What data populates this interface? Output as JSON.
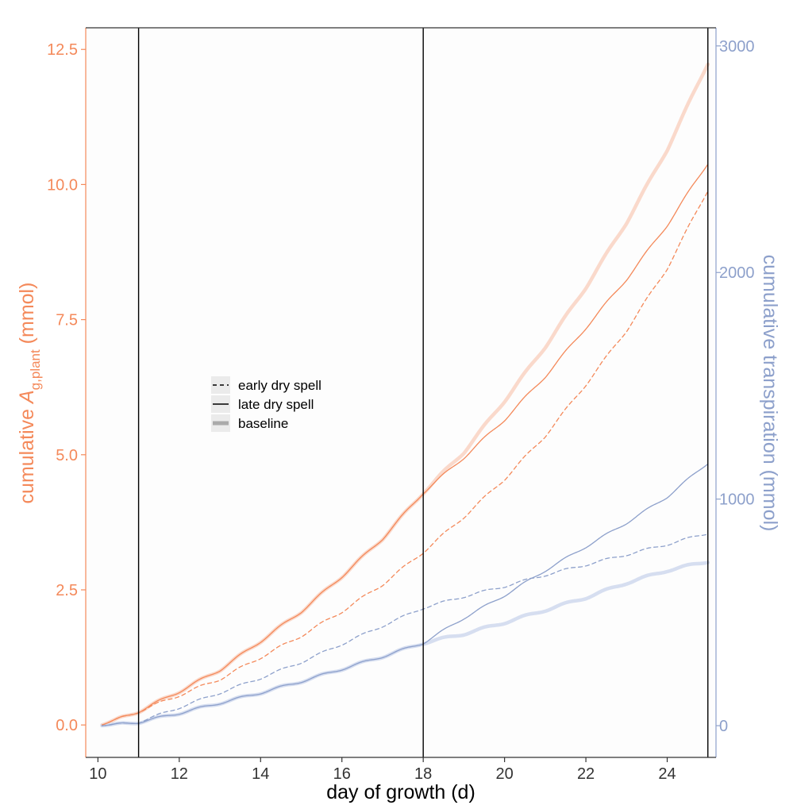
{
  "chart_data": {
    "type": "line",
    "xlabel": "day of growth (d)",
    "ylabel_left": {
      "prefix": "cumulative ",
      "var": "A",
      "sub": "g,plant",
      "suffix": " (mmol)"
    },
    "ylabel_right": "cumulative transpiration (mmol)",
    "xlim": [
      9.7,
      25.2
    ],
    "ylim_left": [
      -0.6,
      12.9
    ],
    "ylim_right": [
      -140,
      3080
    ],
    "x_ticks": [
      10,
      12,
      14,
      16,
      18,
      20,
      22,
      24
    ],
    "y_left_ticks": [
      0.0,
      2.5,
      5.0,
      7.5,
      10.0,
      12.5
    ],
    "y_left_tick_labels": [
      "0.0",
      "2.5",
      "5.0",
      "7.5",
      "10.0",
      "12.5"
    ],
    "y_right_ticks": [
      0,
      1000,
      2000,
      3000
    ],
    "y_right_tick_labels": [
      "0",
      "1000",
      "2000",
      "3000"
    ],
    "vlines": [
      11,
      18,
      25
    ],
    "grid": false,
    "legend": {
      "position": "left-middle",
      "entries": [
        {
          "label": "early dry spell",
          "style": "dashed"
        },
        {
          "label": "late dry spell",
          "style": "solid"
        },
        {
          "label": "baseline",
          "style": "thick"
        }
      ]
    },
    "colors": {
      "assimilation_baseline": "#fad9cb",
      "assimilation": "#f4895a",
      "transpiration_baseline": "#d6def0",
      "transpiration": "#8da0cb",
      "vline": "#000000",
      "legend_bg": "#ebebeb"
    },
    "x": [
      10.1,
      11,
      12,
      13,
      14,
      15,
      16,
      17,
      18,
      19,
      20,
      21,
      22,
      23,
      24,
      25
    ],
    "series": [
      {
        "axis": "left",
        "style": "baseline",
        "values": [
          0.0,
          0.25,
          0.62,
          1.02,
          1.55,
          2.1,
          2.75,
          3.45,
          4.3,
          5.05,
          6.0,
          7.0,
          8.1,
          9.3,
          10.65,
          12.25
        ]
      },
      {
        "axis": "left",
        "style": "late",
        "values": [
          0.0,
          0.25,
          0.62,
          1.02,
          1.55,
          2.1,
          2.75,
          3.45,
          4.3,
          4.95,
          5.65,
          6.45,
          7.35,
          8.25,
          9.25,
          10.4
        ]
      },
      {
        "axis": "left",
        "style": "early",
        "values": [
          0.0,
          0.25,
          0.55,
          0.85,
          1.25,
          1.65,
          2.1,
          2.6,
          3.2,
          3.85,
          4.55,
          5.35,
          6.3,
          7.3,
          8.45,
          9.9
        ]
      },
      {
        "axis": "right",
        "style": "baseline",
        "values": [
          0,
          15,
          55,
          100,
          145,
          195,
          250,
          305,
          365,
          405,
          455,
          510,
          565,
          630,
          685,
          725
        ]
      },
      {
        "axis": "right",
        "style": "late",
        "values": [
          0,
          15,
          55,
          100,
          145,
          195,
          250,
          305,
          365,
          475,
          575,
          685,
          790,
          895,
          1010,
          1160
        ]
      },
      {
        "axis": "right",
        "style": "early",
        "values": [
          0,
          15,
          80,
          145,
          210,
          280,
          360,
          440,
          520,
          570,
          615,
          665,
          710,
          755,
          800,
          850
        ]
      }
    ]
  }
}
